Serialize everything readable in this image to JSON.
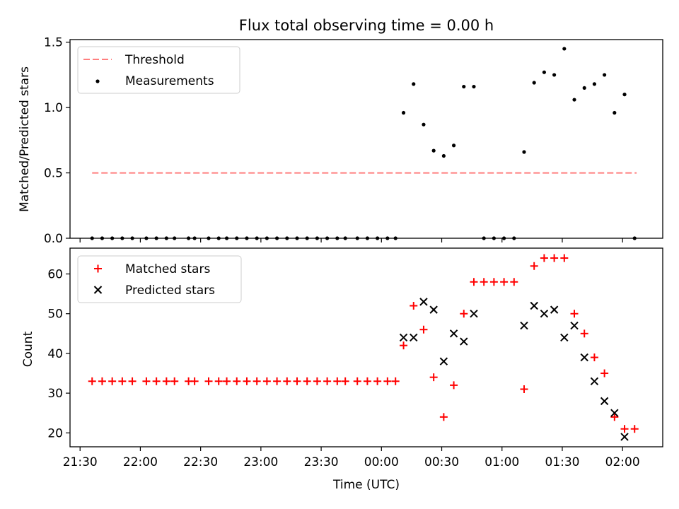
{
  "figure": {
    "title": "Flux total observing time = 0.00 h",
    "xlabel": "Time (UTC)"
  },
  "colors": {
    "threshold": "#ff7f7f",
    "measurements": "#000000",
    "matched": "#ff0000",
    "predicted": "#000000"
  },
  "chart_data": [
    {
      "type": "scatter",
      "ylabel": "Matched/Predicted stars",
      "ylim": [
        0,
        1.52
      ],
      "yticks": [
        0.0,
        0.5,
        1.0,
        1.5
      ],
      "ytick_labels": [
        "0.0",
        "0.5",
        "1.0",
        "1.5"
      ],
      "legend_position": "top-left",
      "grid": false,
      "threshold": {
        "name": "Threshold",
        "value": 0.5,
        "x_start": "21:36",
        "x_end": "02:07",
        "style": "dashed"
      },
      "series": [
        {
          "name": "Measurements",
          "points": [
            [
              "21:36",
              0
            ],
            [
              "21:41",
              0
            ],
            [
              "21:46",
              0
            ],
            [
              "21:51",
              0
            ],
            [
              "21:56",
              0
            ],
            [
              "22:03",
              0
            ],
            [
              "22:08",
              0
            ],
            [
              "22:13",
              0
            ],
            [
              "22:17",
              0
            ],
            [
              "22:24",
              0
            ],
            [
              "22:27",
              0
            ],
            [
              "22:34",
              0
            ],
            [
              "22:39",
              0
            ],
            [
              "22:43",
              0
            ],
            [
              "22:48",
              0
            ],
            [
              "22:53",
              0
            ],
            [
              "22:58",
              0
            ],
            [
              "23:03",
              0
            ],
            [
              "23:08",
              0
            ],
            [
              "23:13",
              0
            ],
            [
              "23:18",
              0
            ],
            [
              "23:23",
              0
            ],
            [
              "23:28",
              0
            ],
            [
              "23:33",
              0
            ],
            [
              "23:38",
              0
            ],
            [
              "23:42",
              0
            ],
            [
              "23:48",
              0
            ],
            [
              "23:53",
              0
            ],
            [
              "23:58",
              0
            ],
            [
              "00:03",
              0
            ],
            [
              "00:07",
              0
            ],
            [
              "00:11",
              0.96
            ],
            [
              "00:16",
              1.18
            ],
            [
              "00:21",
              0.87
            ],
            [
              "00:26",
              0.67
            ],
            [
              "00:31",
              0.63
            ],
            [
              "00:36",
              0.71
            ],
            [
              "00:41",
              1.16
            ],
            [
              "00:46",
              1.16
            ],
            [
              "00:51",
              0
            ],
            [
              "00:56",
              0
            ],
            [
              "01:01",
              0
            ],
            [
              "01:06",
              0
            ],
            [
              "01:11",
              0.66
            ],
            [
              "01:16",
              1.19
            ],
            [
              "01:21",
              1.27
            ],
            [
              "01:26",
              1.25
            ],
            [
              "01:31",
              1.45
            ],
            [
              "01:36",
              1.06
            ],
            [
              "01:41",
              1.15
            ],
            [
              "01:46",
              1.18
            ],
            [
              "01:51",
              1.25
            ],
            [
              "01:56",
              0.96
            ],
            [
              "02:01",
              1.1
            ],
            [
              "02:06",
              0
            ]
          ]
        }
      ]
    },
    {
      "type": "scatter",
      "ylabel": "Count",
      "ylim": [
        16.5,
        66.5
      ],
      "yticks": [
        20,
        30,
        40,
        50,
        60
      ],
      "ytick_labels": [
        "20",
        "30",
        "40",
        "50",
        "60"
      ],
      "legend_position": "top-left",
      "grid": false,
      "series": [
        {
          "name": "Matched stars",
          "marker": "plus",
          "points": [
            [
              "21:36",
              33
            ],
            [
              "21:41",
              33
            ],
            [
              "21:46",
              33
            ],
            [
              "21:51",
              33
            ],
            [
              "21:56",
              33
            ],
            [
              "22:03",
              33
            ],
            [
              "22:08",
              33
            ],
            [
              "22:13",
              33
            ],
            [
              "22:17",
              33
            ],
            [
              "22:24",
              33
            ],
            [
              "22:27",
              33
            ],
            [
              "22:34",
              33
            ],
            [
              "22:39",
              33
            ],
            [
              "22:43",
              33
            ],
            [
              "22:48",
              33
            ],
            [
              "22:53",
              33
            ],
            [
              "22:58",
              33
            ],
            [
              "23:03",
              33
            ],
            [
              "23:08",
              33
            ],
            [
              "23:13",
              33
            ],
            [
              "23:18",
              33
            ],
            [
              "23:23",
              33
            ],
            [
              "23:28",
              33
            ],
            [
              "23:33",
              33
            ],
            [
              "23:38",
              33
            ],
            [
              "23:42",
              33
            ],
            [
              "23:48",
              33
            ],
            [
              "23:53",
              33
            ],
            [
              "23:58",
              33
            ],
            [
              "00:03",
              33
            ],
            [
              "00:07",
              33
            ],
            [
              "00:11",
              42
            ],
            [
              "00:16",
              52
            ],
            [
              "00:21",
              46
            ],
            [
              "00:26",
              34
            ],
            [
              "00:31",
              24
            ],
            [
              "00:36",
              32
            ],
            [
              "00:41",
              50
            ],
            [
              "00:46",
              58
            ],
            [
              "00:51",
              58
            ],
            [
              "00:56",
              58
            ],
            [
              "01:01",
              58
            ],
            [
              "01:06",
              58
            ],
            [
              "01:11",
              31
            ],
            [
              "01:16",
              62
            ],
            [
              "01:21",
              64
            ],
            [
              "01:26",
              64
            ],
            [
              "01:31",
              64
            ],
            [
              "01:36",
              50
            ],
            [
              "01:41",
              45
            ],
            [
              "01:46",
              39
            ],
            [
              "01:51",
              35
            ],
            [
              "01:56",
              24
            ],
            [
              "02:01",
              21
            ],
            [
              "02:06",
              21
            ]
          ]
        },
        {
          "name": "Predicted stars",
          "marker": "x",
          "points": [
            [
              "00:11",
              44
            ],
            [
              "00:16",
              44
            ],
            [
              "00:21",
              53
            ],
            [
              "00:26",
              51
            ],
            [
              "00:31",
              38
            ],
            [
              "00:36",
              45
            ],
            [
              "00:41",
              43
            ],
            [
              "00:46",
              50
            ],
            [
              "01:11",
              47
            ],
            [
              "01:16",
              52
            ],
            [
              "01:21",
              50
            ],
            [
              "01:26",
              51
            ],
            [
              "01:31",
              44
            ],
            [
              "01:36",
              47
            ],
            [
              "01:41",
              39
            ],
            [
              "01:46",
              33
            ],
            [
              "01:51",
              28
            ],
            [
              "01:56",
              25
            ],
            [
              "02:01",
              19
            ]
          ]
        }
      ]
    }
  ],
  "xaxis": {
    "ticks": [
      "21:30",
      "22:00",
      "22:30",
      "23:00",
      "23:30",
      "00:00",
      "00:30",
      "01:00",
      "01:30",
      "02:00"
    ],
    "range": [
      "21:25",
      "02:20"
    ]
  }
}
